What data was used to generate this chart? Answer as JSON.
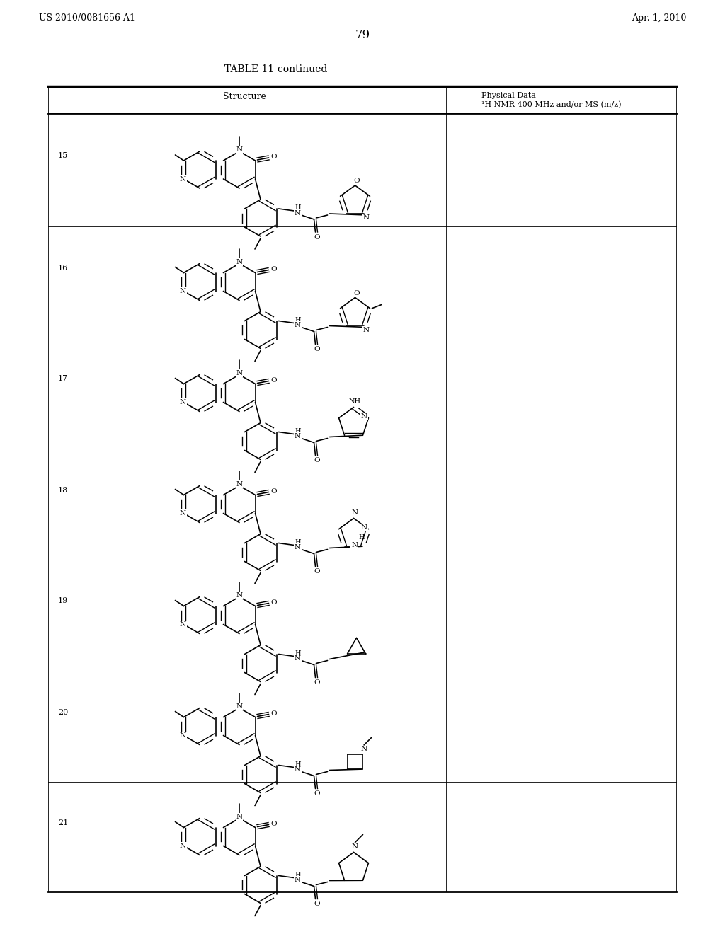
{
  "page_number": "79",
  "header_left": "US 2010/0081656 A1",
  "header_right": "Apr. 1, 2010",
  "table_title": "TABLE 11-continued",
  "col1_header": "Structure",
  "col2_header_line1": "Physical Data",
  "col2_header_line2": "¹H NMR 400 MHz and/or MS (m/z)",
  "row_numbers": [
    "15",
    "16",
    "17",
    "18",
    "19",
    "20",
    "21"
  ],
  "background_color": "#ffffff",
  "text_color": "#000000"
}
